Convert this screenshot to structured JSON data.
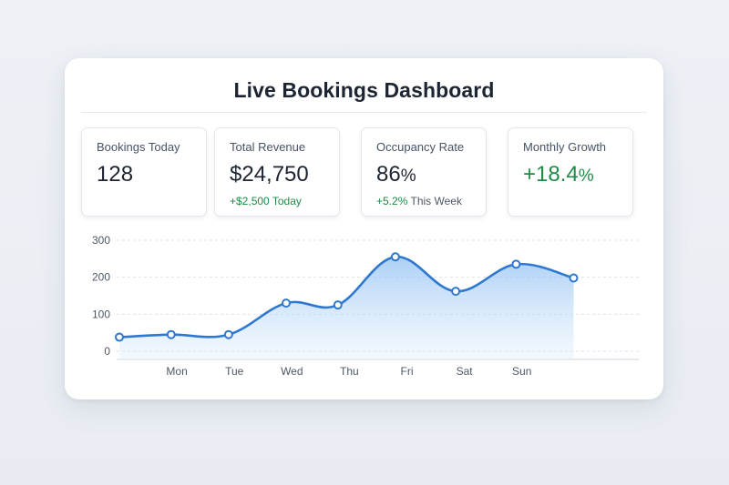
{
  "header": {
    "title": "Live Bookings Dashboard"
  },
  "metrics": [
    {
      "label": "Bookings Today",
      "value": "128",
      "unit": "",
      "change": "",
      "change_suffix": ""
    },
    {
      "label": "Total Revenue",
      "value": "$24,750",
      "unit": "",
      "change": "+$2,500",
      "change_suffix": "Today"
    },
    {
      "label": "Occupancy Rate",
      "value": "86",
      "unit": "%",
      "change": "+5.2%",
      "change_suffix": "This Week"
    },
    {
      "label": "Monthly Growth",
      "value": "+18.4",
      "unit": "%",
      "change": "",
      "change_suffix": ""
    }
  ],
  "colors": {
    "accent": "#2f78d0",
    "positive": "#1f8b47",
    "text": "#1d2432",
    "muted": "#475366"
  },
  "chart_data": {
    "type": "area",
    "title": "",
    "xlabel": "",
    "ylabel": "",
    "categories": [
      "Mon",
      "Tue",
      "Wed",
      "Thu",
      "Fri",
      "Sat",
      "Sun"
    ],
    "yticks": [
      0,
      100,
      200,
      300
    ],
    "ylim": [
      0,
      300
    ],
    "grid": true,
    "points": [
      {
        "x": 0,
        "y": 38
      },
      {
        "x": 0.9,
        "y": 45
      },
      {
        "x": 1.9,
        "y": 45
      },
      {
        "x": 2.9,
        "y": 130
      },
      {
        "x": 3.8,
        "y": 125
      },
      {
        "x": 4.8,
        "y": 255
      },
      {
        "x": 5.85,
        "y": 162
      },
      {
        "x": 6.9,
        "y": 235
      },
      {
        "x": 7.9,
        "y": 198
      }
    ]
  }
}
